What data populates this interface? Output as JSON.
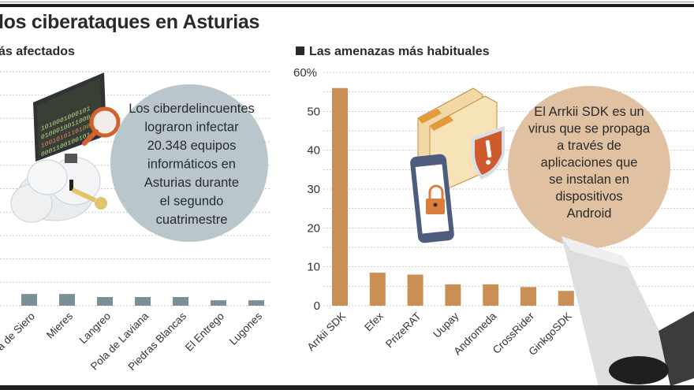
{
  "header": {
    "title": "los ciberataques en Asturias",
    "left_subtitle": "ás afectados",
    "right_subtitle": "Las amenazas más habituales"
  },
  "callouts": {
    "left": [
      "Los ciberdelincuentes",
      "lograron infectar",
      "20.348 equipos",
      "informáticos en",
      "Asturias durante",
      "el segundo",
      "cuatrimestre"
    ],
    "right": [
      "El Arrkii SDK es un",
      "virus que se propaga",
      "a través de",
      "aplicaciones que",
      "se instalan en",
      "dispositivos",
      "Android"
    ]
  },
  "colors": {
    "left_bars": "#7b8f99",
    "right_bars": "#c98f55",
    "left_bubble": "#b9c7cc",
    "right_bubble": "#e0c2a2",
    "grid": "#c9c9c9"
  },
  "chart_data": [
    {
      "type": "bar",
      "title": "ás afectados",
      "categories": [
        "a de Siero",
        "Mieres",
        "Langreo",
        "Pola de Laviana",
        "Piedras Blancas",
        "El Entrego",
        "Lugones"
      ],
      "values": [
        0.5,
        0.5,
        0.37,
        0.37,
        0.37,
        0.23,
        0.23
      ],
      "xlabel": "",
      "ylabel": "",
      "ylim": [
        0,
        10
      ],
      "grid": true,
      "note": "values relative to gridline spacing; y-axis labels cropped out of view"
    },
    {
      "type": "bar",
      "title": "Las amenazas más habituales",
      "categories": [
        "Arrkii SDK",
        "Efex",
        "PrizeRAT",
        "Uupay",
        "Andromeda",
        "CrossRider",
        "GinkgoSDK"
      ],
      "values": [
        56,
        8.5,
        8,
        5.5,
        5.5,
        4.8,
        3.8
      ],
      "xlabel": "",
      "ylabel": "%",
      "ylim": [
        0,
        60
      ],
      "yticks": [
        "0",
        "10",
        "20",
        "30",
        "40",
        "50",
        "60%"
      ],
      "grid": true
    }
  ]
}
